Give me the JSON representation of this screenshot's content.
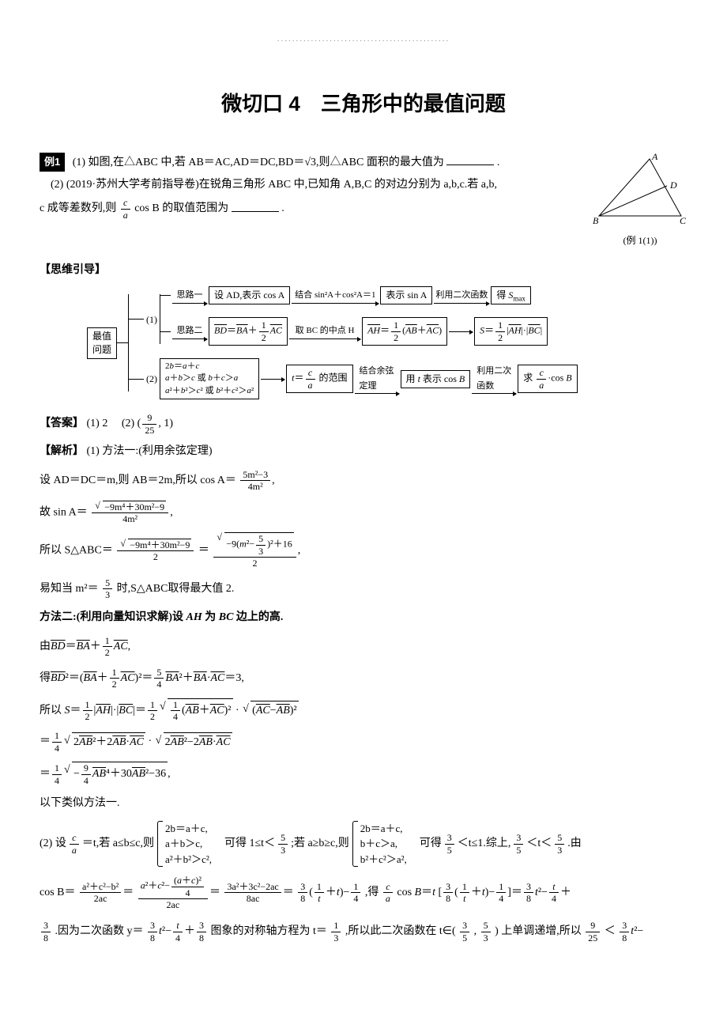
{
  "page": {
    "dots": "..............................................",
    "title": "微切口 4　三角形中的最值问题",
    "example_badge": "例1",
    "p1": "(1) 如图,在△ABC 中,若 AB＝AC,AD＝DC,BD＝√3,则△ABC 面积的最大值为",
    "p1_suffix": ".",
    "p2_head": "(2) (2019·苏州大学考前指导卷)在锐角三角形 ABC 中,已知角 A,B,C 的对边分别为 a,b,c.若 a,b,",
    "p2_tail": "c 成等差数列,则",
    "p2_mid": "cos B 的取值范围为",
    "p2_suffix": ".",
    "figure_label": "(例 1(1))",
    "figure": {
      "A": "A",
      "B": "B",
      "C": "C",
      "D": "D"
    },
    "guide_head": "【思维引导】",
    "answer_head": "【答案】",
    "answer_a1": "(1) 2",
    "answer_a2_open": "(2) (",
    "answer_a2_num": "9",
    "answer_a2_den": "25",
    "answer_a2_close": ", 1)",
    "parse_head": "【解析】",
    "parse1_head": "(1) 方法一:(利用余弦定理)",
    "m1_l1_a": "设 AD＝DC＝m,则 AB＝2m,所以 cos A＝",
    "m1_l1_frac_num": "5m²−3",
    "m1_l1_frac_den": "4m²",
    "m1_l2_a": "故 sin A＝",
    "m1_l2_num": "−9m⁴＋30m²−9",
    "m1_l2_den": "4m²",
    "m1_l3_a": "所以 S△ABC＝",
    "m1_l3_num": "−9m⁴＋30m²−9",
    "m1_l3_den": "2",
    "m1_l3_eq": "＝",
    "m1_l3b_num": "−9(m²− 5⁄3 )²＋16",
    "m1_l3b_den": "2",
    "m1_l4": "易知当 m²＝",
    "m1_l4_num": "5",
    "m1_l4_den": "3",
    "m1_l4_tail": " 时,S△ABC取得最大值 2.",
    "m2_head": "方法二:(利用向量知识求解)设 AH 为 BC 边上的高.",
    "m2_l1_a": "由",
    "m2_l1_bd": "BD",
    "m2_l1_eq": "＝",
    "m2_l1_ba": "BA",
    "m2_l1_plus": "＋",
    "m2_l1_num": "1",
    "m2_l1_den": "2",
    "m2_l1_ac": "AC",
    "m2_l2_a": "得",
    "m2_l2_eq": "＝",
    "m2_l2_paren_open": "(",
    "m2_l2_paren_close": ")²",
    "m2_l2_r_num": "5",
    "m2_l2_r_den": "4",
    "m2_l2_rest": "BA²＋BA · AC＝3,",
    "m2_l3_a": "所以 S＝",
    "m2_l3_num1": "1",
    "m2_l3_den1": "2",
    "m2_l3_ah": "|AH| · |BC|＝",
    "m2_l3_under": "¼(AB＋AC)²",
    "m2_l3_mid": " · ",
    "m2_l3_under2": "(AC−AB)²",
    "m2_l4_num": "1",
    "m2_l4_den": "4",
    "m2_l4_s1": "2AB²＋2AB · AC",
    "m2_l4_s2": "2AB²−2AB · AC",
    "m2_l5_num": "1",
    "m2_l5_den": "4",
    "m2_l5_rad": "− 9⁄4 AB⁴＋30AB²−36",
    "m2_l6": "以下类似方法一.",
    "part2_a": "(2) 设",
    "part2_frac_num": "c",
    "part2_frac_den": "a",
    "part2_eq_t": "＝t,若 a≤b≤c,则",
    "part2_case1_1": "2b＝a＋c,",
    "part2_case1_2": "a＋b＞c,",
    "part2_case1_3": "a²＋b²＞c²,",
    "part2_mid1": "　可得 1≤t＜",
    "part2_f53_n": "5",
    "part2_f53_d": "3",
    "part2_mid2": ";若 a≥b≥c,则",
    "part2_case2_1": "2b＝a＋c,",
    "part2_case2_2": "b＋c＞a,",
    "part2_case2_3": "b²＋c²＞a²,",
    "part2_mid3": "　可得",
    "part2_f35_n": "3",
    "part2_f35_d": "5",
    "part2_mid4": "＜t≤1.综上,",
    "part2_mid5": "＜t＜",
    "part2_mid6": ".由",
    "cosB_a": "cos B＝",
    "cosB_f1_n": "a²＋c²−b²",
    "cosB_f1_d": "2ac",
    "cosB_f2_n": "a²＋c²− (a＋c)²⁄4",
    "cosB_f2_d": "2ac",
    "cosB_f3_n": "3a²＋3c²−2ac",
    "cosB_f3_d": "8ac",
    "cosB_f4_n": "3",
    "cosB_f4_d": "8",
    "cosB_paren": "( 1⁄t ＋t )−",
    "cosB_f5_n": "1",
    "cosB_f5_d": "4",
    "cosB_mid": ",得",
    "cosB_ca_n": "c",
    "cosB_ca_d": "a",
    "cosB_eq2": "cos B＝t [",
    "cosB_close": "]＝",
    "cosB_tail_a": " t²−",
    "cosB_tail_b_n": "t",
    "cosB_tail_b_d": "4",
    "cosB_tail_c": "＋",
    "last_a_n": "3",
    "last_a_d": "8",
    "last_text": ".因为二次函数 y＝",
    "last_b": " t²−",
    "last_c_n": "t",
    "last_c_d": "4",
    "last_d": "＋",
    "last_e": " 图象的对称轴方程为 t＝",
    "last_f_n": "1",
    "last_f_d": "3",
    "last_g": ",所以此二次函数在 t∈(",
    "last_h": ",",
    "last_i": ") 上单调递增,所以",
    "last_j_n": "9",
    "last_j_d": "25",
    "last_k": "＜",
    "last_l": " t²−",
    "flow": {
      "root": "最值\n问题",
      "n1": "(1)",
      "n2": "(2)",
      "b1a": "思路一",
      "b1b": "思路二",
      "s1": "设 AD,表示 cos A",
      "s1_lab": "结合 sin²A＋cos²A＝1",
      "s2": "表示 sin A",
      "s2_lab": "利用二次函数",
      "s3": "得 Smax",
      "s4": "BD＝BA＋½AC",
      "s4_lab": "取 BC 的中点 H",
      "s5": "AH＝½(AB＋AC)",
      "s6": "S＝½|AH|·|BC|",
      "c2_box": "2b＝a＋c\na＋b＞c 或 b＋c＞a\na²＋b²＞c² 或 b²＋c²＞a²",
      "c2_s1": "t＝c⁄a 的范围",
      "c2_lab1": "结合余弦\n定理",
      "c2_s2": "用 t 表示 cos B",
      "c2_lab2": "利用二次\n函数",
      "c2_s3": "求 c⁄a·cos B"
    }
  }
}
